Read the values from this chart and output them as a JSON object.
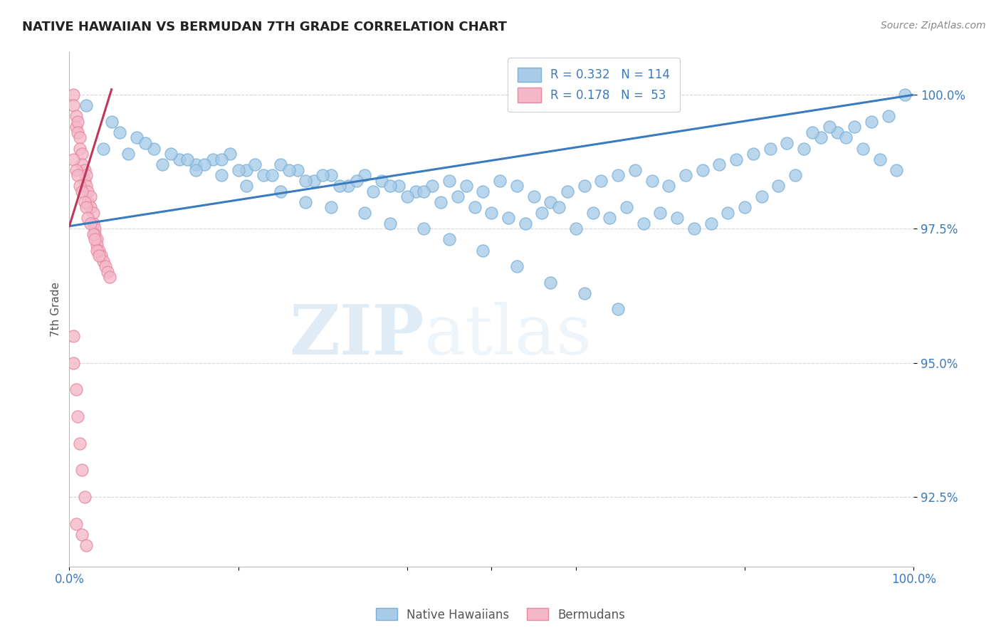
{
  "title": "NATIVE HAWAIIAN VS BERMUDAN 7TH GRADE CORRELATION CHART",
  "source": "Source: ZipAtlas.com",
  "ylabel": "7th Grade",
  "yticks": [
    92.5,
    95.0,
    97.5,
    100.0
  ],
  "ytick_labels": [
    "92.5%",
    "95.0%",
    "97.5%",
    "100.0%"
  ],
  "xlim": [
    0.0,
    1.0
  ],
  "ylim": [
    91.2,
    100.8
  ],
  "blue_color": "#a8cce8",
  "pink_color": "#f4b8c8",
  "blue_edge_color": "#7ab0d8",
  "pink_edge_color": "#e888a0",
  "blue_line_color": "#3a7abf",
  "pink_line_color": "#c0365a",
  "watermark_zip": "ZIP",
  "watermark_atlas": "atlas",
  "series1_label": "Native Hawaiians",
  "series2_label": "Bermudans",
  "blue_scatter_x": [
    0.02,
    0.05,
    0.08,
    0.1,
    0.13,
    0.15,
    0.17,
    0.19,
    0.21,
    0.23,
    0.25,
    0.27,
    0.29,
    0.31,
    0.33,
    0.35,
    0.37,
    0.39,
    0.41,
    0.43,
    0.45,
    0.47,
    0.49,
    0.51,
    0.53,
    0.55,
    0.57,
    0.59,
    0.61,
    0.63,
    0.65,
    0.67,
    0.69,
    0.71,
    0.73,
    0.75,
    0.77,
    0.79,
    0.81,
    0.83,
    0.85,
    0.87,
    0.89,
    0.91,
    0.93,
    0.95,
    0.97,
    0.99,
    0.06,
    0.09,
    0.12,
    0.14,
    0.16,
    0.18,
    0.2,
    0.22,
    0.24,
    0.26,
    0.28,
    0.3,
    0.32,
    0.34,
    0.36,
    0.38,
    0.4,
    0.42,
    0.44,
    0.46,
    0.48,
    0.5,
    0.52,
    0.54,
    0.56,
    0.58,
    0.6,
    0.62,
    0.64,
    0.66,
    0.68,
    0.7,
    0.72,
    0.74,
    0.76,
    0.78,
    0.8,
    0.82,
    0.84,
    0.86,
    0.88,
    0.9,
    0.92,
    0.94,
    0.96,
    0.98,
    0.04,
    0.07,
    0.11,
    0.15,
    0.18,
    0.21,
    0.25,
    0.28,
    0.31,
    0.35,
    0.38,
    0.42,
    0.45,
    0.49,
    0.53,
    0.57,
    0.61,
    0.65
  ],
  "blue_scatter_y": [
    99.8,
    99.5,
    99.2,
    99.0,
    98.8,
    98.7,
    98.8,
    98.9,
    98.6,
    98.5,
    98.7,
    98.6,
    98.4,
    98.5,
    98.3,
    98.5,
    98.4,
    98.3,
    98.2,
    98.3,
    98.4,
    98.3,
    98.2,
    98.4,
    98.3,
    98.1,
    98.0,
    98.2,
    98.3,
    98.4,
    98.5,
    98.6,
    98.4,
    98.3,
    98.5,
    98.6,
    98.7,
    98.8,
    98.9,
    99.0,
    99.1,
    99.0,
    99.2,
    99.3,
    99.4,
    99.5,
    99.6,
    100.0,
    99.3,
    99.1,
    98.9,
    98.8,
    98.7,
    98.8,
    98.6,
    98.7,
    98.5,
    98.6,
    98.4,
    98.5,
    98.3,
    98.4,
    98.2,
    98.3,
    98.1,
    98.2,
    98.0,
    98.1,
    97.9,
    97.8,
    97.7,
    97.6,
    97.8,
    97.9,
    97.5,
    97.8,
    97.7,
    97.9,
    97.6,
    97.8,
    97.7,
    97.5,
    97.6,
    97.8,
    97.9,
    98.1,
    98.3,
    98.5,
    99.3,
    99.4,
    99.2,
    99.0,
    98.8,
    98.6,
    99.0,
    98.9,
    98.7,
    98.6,
    98.5,
    98.3,
    98.2,
    98.0,
    97.9,
    97.8,
    97.6,
    97.5,
    97.3,
    97.1,
    96.8,
    96.5,
    96.3,
    96.0
  ],
  "pink_scatter_x": [
    0.005,
    0.005,
    0.008,
    0.008,
    0.01,
    0.01,
    0.012,
    0.012,
    0.015,
    0.015,
    0.018,
    0.018,
    0.02,
    0.02,
    0.022,
    0.022,
    0.025,
    0.025,
    0.028,
    0.028,
    0.03,
    0.03,
    0.033,
    0.033,
    0.035,
    0.038,
    0.04,
    0.043,
    0.045,
    0.048,
    0.005,
    0.008,
    0.01,
    0.012,
    0.015,
    0.018,
    0.02,
    0.022,
    0.025,
    0.028,
    0.03,
    0.033,
    0.035,
    0.005,
    0.005,
    0.008,
    0.01,
    0.012,
    0.015,
    0.018,
    0.008,
    0.015,
    0.02
  ],
  "pink_scatter_y": [
    100.0,
    99.8,
    99.6,
    99.4,
    99.5,
    99.3,
    99.2,
    99.0,
    98.9,
    98.7,
    98.6,
    98.4,
    98.5,
    98.3,
    98.2,
    98.0,
    98.1,
    97.9,
    97.8,
    97.6,
    97.5,
    97.4,
    97.3,
    97.2,
    97.1,
    97.0,
    96.9,
    96.8,
    96.7,
    96.6,
    98.8,
    98.6,
    98.5,
    98.3,
    98.2,
    98.0,
    97.9,
    97.7,
    97.6,
    97.4,
    97.3,
    97.1,
    97.0,
    95.5,
    95.0,
    94.5,
    94.0,
    93.5,
    93.0,
    92.5,
    92.0,
    91.8,
    91.6
  ],
  "blue_line_x": [
    0.0,
    1.0
  ],
  "blue_line_y": [
    97.55,
    100.0
  ],
  "pink_line_x": [
    0.0,
    0.05
  ],
  "pink_line_y": [
    97.55,
    100.1
  ]
}
